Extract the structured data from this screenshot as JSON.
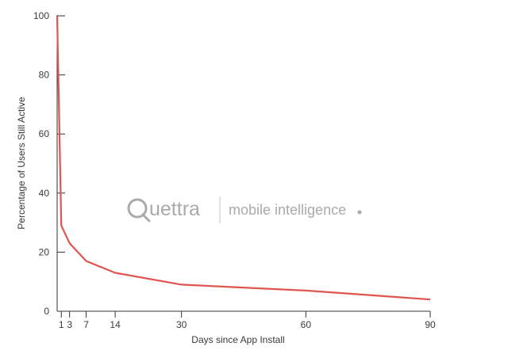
{
  "chart_data": {
    "type": "line",
    "title": "",
    "xlabel": "Days since App Install",
    "ylabel": "Percentage of Users Still Active",
    "xlim": [
      0,
      90
    ],
    "ylim": [
      0,
      100
    ],
    "x_ticks": [
      1,
      3,
      7,
      14,
      30,
      60,
      90
    ],
    "y_ticks": [
      0,
      20,
      40,
      60,
      80,
      100
    ],
    "grid": false,
    "legend": "none",
    "line_color": "#e0554f",
    "series": [
      {
        "x": [
          0,
          1,
          3,
          7,
          14,
          30,
          60,
          90
        ],
        "y": [
          100,
          29,
          23,
          17,
          13,
          9,
          7,
          4
        ]
      }
    ]
  },
  "watermark": {
    "brand": "uettra",
    "tagline": "mobile intelligence",
    "color": "#a8aaac"
  }
}
